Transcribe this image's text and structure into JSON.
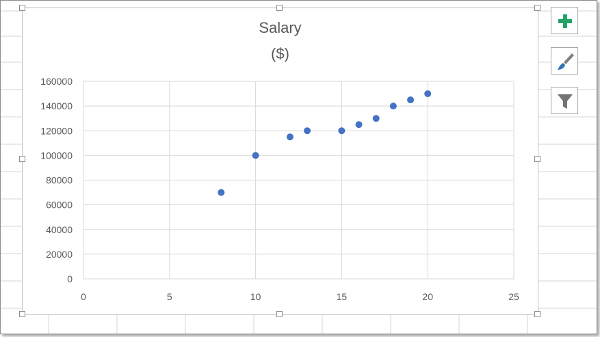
{
  "chart_data": {
    "type": "scatter",
    "title": "Salary",
    "subtitle": "($)",
    "xlabel": "",
    "ylabel": "",
    "xlim": [
      0,
      25
    ],
    "ylim": [
      0,
      160000
    ],
    "x_ticks": [
      0,
      5,
      10,
      15,
      20,
      25
    ],
    "y_ticks": [
      0,
      20000,
      40000,
      60000,
      80000,
      100000,
      120000,
      140000,
      160000
    ],
    "grid": true,
    "legend": "none",
    "series": [
      {
        "color": "#4472c4",
        "points": [
          {
            "x": 8,
            "y": 70000
          },
          {
            "x": 10,
            "y": 100000
          },
          {
            "x": 12,
            "y": 115000
          },
          {
            "x": 13,
            "y": 120000
          },
          {
            "x": 15,
            "y": 120000
          },
          {
            "x": 16,
            "y": 125000
          },
          {
            "x": 17,
            "y": 130000
          },
          {
            "x": 18,
            "y": 140000
          },
          {
            "x": 19,
            "y": 145000
          },
          {
            "x": 20,
            "y": 150000
          }
        ]
      }
    ]
  },
  "toolbar": {
    "buttons": [
      {
        "icon": "plus-icon",
        "color": "#21a366"
      },
      {
        "icon": "paintbrush-icon",
        "color": "#2e75b6"
      },
      {
        "icon": "filter-icon",
        "color": "#595959"
      }
    ]
  },
  "colors": {
    "gridline": "#d9d9d9",
    "axis_text": "#595959",
    "sheet_grid": "#d4d4d4"
  }
}
